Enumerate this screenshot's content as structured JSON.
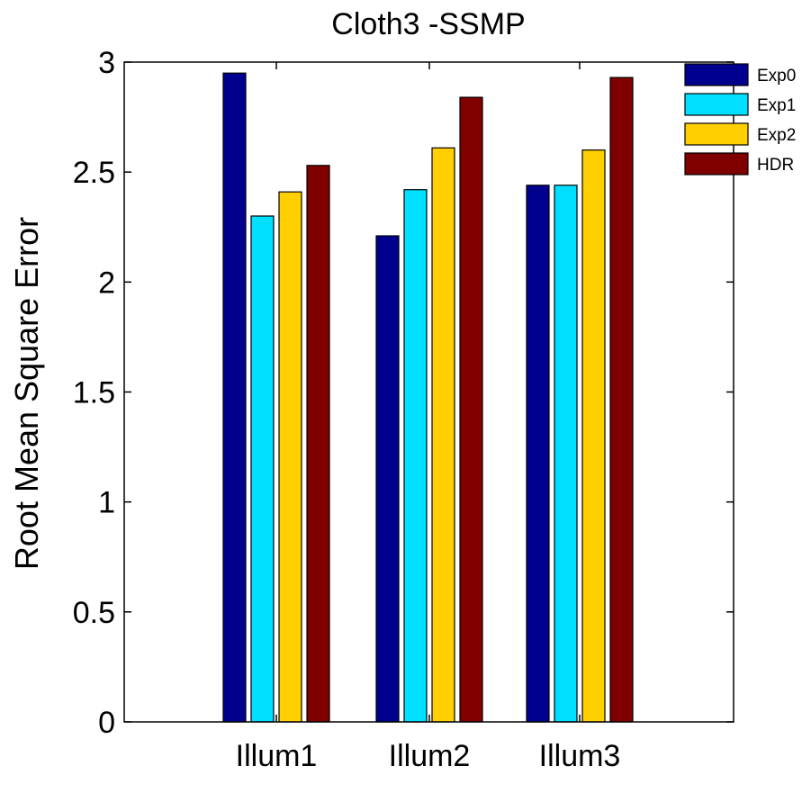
{
  "chart_data": {
    "type": "bar",
    "title": "Cloth3 -SSMP",
    "xlabel": "",
    "ylabel": "Root Mean Square Error",
    "categories": [
      "Illum1",
      "Illum2",
      "Illum3"
    ],
    "ylim": [
      0,
      3
    ],
    "yticks": [
      0,
      0.5,
      1,
      1.5,
      2,
      2.5,
      3
    ],
    "ytick_labels": [
      "0",
      "0.5",
      "1",
      "1.5",
      "2",
      "2.5",
      "3"
    ],
    "grid": false,
    "legend": "top-right",
    "series": [
      {
        "name": "Exp0",
        "color": "#00008f",
        "values": [
          2.95,
          2.21,
          2.44
        ]
      },
      {
        "name": "Exp1",
        "color": "#00dfff",
        "values": [
          2.3,
          2.42,
          2.44
        ]
      },
      {
        "name": "Exp2",
        "color": "#ffcf00",
        "values": [
          2.41,
          2.61,
          2.6
        ]
      },
      {
        "name": "HDR",
        "color": "#800000",
        "values": [
          2.53,
          2.84,
          2.93
        ]
      }
    ]
  }
}
